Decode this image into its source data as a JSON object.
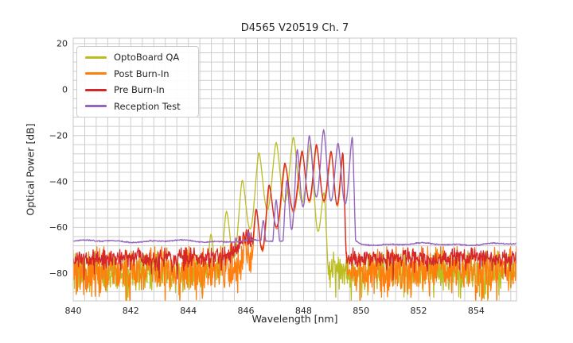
{
  "figure": {
    "background": "#ffffff",
    "text_color": "#262626",
    "grid_color": "#cdcdcd",
    "axes_border_color": "#c8c8c8"
  },
  "chart_data": {
    "type": "line",
    "title": "D4565 V20519 Ch. 7",
    "xlabel": "Wavelength [nm]",
    "ylabel": "Optical Power [dB]",
    "xlim": [
      840.0,
      855.4
    ],
    "ylim": [
      -92.0,
      22.4
    ],
    "xticks": [
      840,
      842,
      844,
      846,
      848,
      850,
      852,
      854
    ],
    "yticks": [
      20,
      0,
      -20,
      -40,
      -60,
      -80
    ],
    "minor_grid_step_nm": 0.4,
    "minor_grid_step_db": 4,
    "grid": true,
    "legend_position": "upper left",
    "series": [
      {
        "name": "OptoBoard QA",
        "color": "#bcbd22",
        "style": "noisy",
        "seed": 101,
        "line_width": 1.3,
        "noise_floor_db": -79.5,
        "noise_std_db": 4.2,
        "spike_probability": 0.05,
        "spike_depth_db": 11,
        "dip_depth_db": 27,
        "modes": [
          [
            844.3,
            -72.0
          ],
          [
            844.78,
            -63.0
          ],
          [
            845.32,
            -53.0
          ],
          [
            845.87,
            -39.5
          ],
          [
            846.45,
            -27.5
          ],
          [
            847.05,
            -23.0
          ],
          [
            847.65,
            -20.8
          ],
          [
            848.25,
            -23.3
          ],
          [
            848.72,
            -45.0
          ],
          [
            849.1,
            -75.0
          ]
        ]
      },
      {
        "name": "Post Burn-In",
        "color": "#ff7f0e",
        "style": "noisy",
        "seed": 202,
        "line_width": 1.3,
        "noise_floor_db": -79.0,
        "noise_std_db": 4.8,
        "spike_probability": 0.08,
        "spike_depth_db": 13,
        "noise_bump": {
          "nm": 845.95,
          "amp": 4.0,
          "width": 0.45
        },
        "dip_depth_db": 23,
        "modes": [
          [
            845.92,
            -63.0
          ],
          [
            846.36,
            -52.5
          ],
          [
            846.81,
            -42.2
          ],
          [
            847.36,
            -33.0
          ],
          [
            847.96,
            -27.6
          ],
          [
            848.46,
            -24.5
          ],
          [
            848.97,
            -27.5
          ],
          [
            849.38,
            -28.0
          ],
          [
            849.63,
            -80.0
          ]
        ]
      },
      {
        "name": "Pre Burn-In",
        "color": "#d62728",
        "style": "noisy",
        "seed": 303,
        "line_width": 1.3,
        "noise_floor_db": -73.5,
        "noise_std_db": 2.1,
        "spike_probability": 0.04,
        "spike_depth_db": 8,
        "noise_bump": {
          "nm": 846.05,
          "amp": 8.0,
          "width": 0.5
        },
        "dip_depth_db": 23,
        "modes": [
          [
            845.9,
            -62.0
          ],
          [
            846.35,
            -52.0
          ],
          [
            846.8,
            -41.5
          ],
          [
            847.35,
            -32.0
          ],
          [
            847.95,
            -26.7
          ],
          [
            848.45,
            -23.8
          ],
          [
            848.96,
            -26.8
          ],
          [
            849.37,
            -27.2
          ],
          [
            849.63,
            -80.0
          ]
        ]
      },
      {
        "name": "Reception Test",
        "color": "#9467bd",
        "style": "smooth",
        "seed": 404,
        "line_width": 1.4,
        "baseline_left_db": -66.0,
        "baseline_right_db": -67.3,
        "cliff_nm": 849.88,
        "dip_depth_db": 28,
        "modes": [
          [
            845.2,
            -67.0
          ],
          [
            845.65,
            -64.5
          ],
          [
            846.1,
            -62.0
          ],
          [
            846.6,
            -57.0
          ],
          [
            847.05,
            -48.0
          ],
          [
            847.42,
            -39.5
          ],
          [
            847.78,
            -26.0
          ],
          [
            848.2,
            -20.0
          ],
          [
            848.7,
            -17.5
          ],
          [
            849.2,
            -23.3
          ],
          [
            849.7,
            -20.4
          ],
          [
            850.02,
            -88.0
          ]
        ]
      }
    ]
  }
}
